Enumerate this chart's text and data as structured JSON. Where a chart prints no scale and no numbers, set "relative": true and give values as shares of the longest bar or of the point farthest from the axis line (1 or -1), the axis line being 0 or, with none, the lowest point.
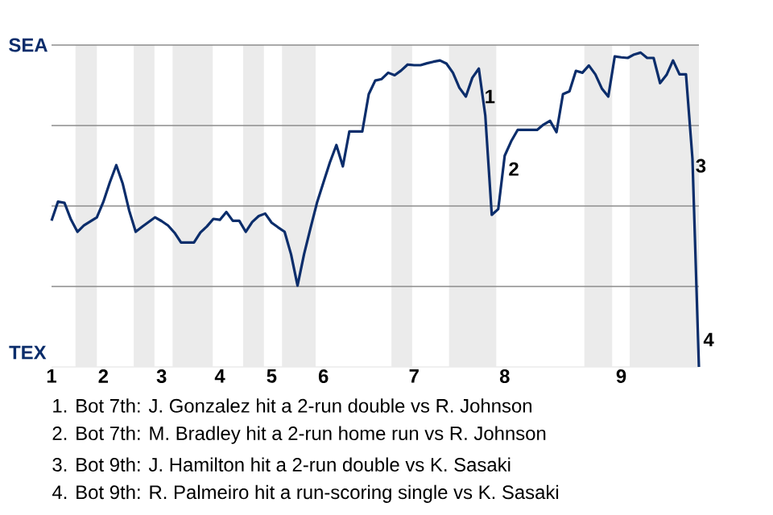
{
  "chart_data": {
    "type": "line",
    "relative": true,
    "color": "#0b2d6b",
    "categories": [
      "1",
      null,
      null,
      null,
      null,
      null,
      null,
      null,
      "2",
      null,
      null,
      null,
      null,
      null,
      null,
      null,
      null,
      "3",
      null,
      null,
      null,
      null,
      null,
      null,
      null,
      null,
      "4",
      null,
      null,
      null,
      null,
      null,
      null,
      null,
      "5",
      null,
      null,
      null,
      null,
      null,
      null,
      null,
      "6",
      null,
      null,
      null,
      null,
      null,
      null,
      null,
      null,
      null,
      null,
      null,
      null,
      null,
      "7",
      null,
      null,
      null,
      null,
      null,
      null,
      null,
      null,
      null,
      null,
      null,
      null,
      null,
      "8",
      null,
      null,
      null,
      null,
      null,
      null,
      null,
      null,
      null,
      null,
      null,
      null,
      null,
      null,
      null,
      null,
      null,
      "9",
      null,
      null,
      null,
      null,
      null,
      null,
      null,
      null,
      null,
      null,
      null,
      null
    ],
    "values": [
      0.465,
      0.526,
      0.522,
      0.469,
      0.43,
      0.45,
      0.463,
      0.476,
      0.525,
      0.587,
      0.642,
      0.583,
      0.497,
      0.43,
      0.446,
      0.461,
      0.476,
      0.464,
      0.45,
      0.427,
      0.396,
      0.396,
      0.396,
      0.428,
      0.447,
      0.471,
      0.468,
      0.493,
      0.465,
      0.465,
      0.43,
      0.461,
      0.48,
      0.488,
      0.459,
      0.444,
      0.43,
      0.358,
      0.259,
      0.358,
      0.441,
      0.522,
      0.587,
      0.651,
      0.706,
      0.638,
      0.749,
      0.749,
      0.749,
      0.868,
      0.911,
      0.916,
      0.936,
      0.928,
      0.943,
      0.962,
      0.96,
      0.96,
      0.966,
      0.971,
      0.975,
      0.965,
      0.936,
      0.888,
      0.86,
      0.92,
      0.949,
      0.8,
      0.484,
      0.502,
      0.672,
      0.718,
      0.754,
      0.754,
      0.754,
      0.754,
      0.771,
      0.783,
      0.747,
      0.868,
      0.877,
      0.942,
      0.936,
      0.959,
      0.931,
      0.886,
      0.86,
      0.988,
      0.985,
      0.983,
      0.994,
      1,
      0.983,
      0.983,
      0.903,
      0.929,
      0.975,
      0.931,
      0.931,
      0.663,
      0
    ],
    "ref_lines": [
      {
        "axis": "y",
        "value": 0.256,
        "color": "#8c8c8c"
      },
      {
        "axis": "y",
        "value": 0.512,
        "color": "#8c8c8c"
      },
      {
        "axis": "y",
        "value": 0.768,
        "color": "#8c8c8c"
      },
      {
        "axis": "y",
        "value": 1.024,
        "label": "SEA",
        "color": "#8c8c8c"
      }
    ],
    "annotations": [
      "1",
      "2",
      "3",
      "4",
      "TEX",
      "1. Bot 7th: J. Gonzalez hit a 2-run double vs R. Johnson",
      "2. Bot 7th: M. Bradley hit a 2-run home run vs R. Johnson",
      "3. Bot 9th: J. Hamilton hit a 2-run double vs K. Sasaki",
      "4. Bot 9th: R. Palmeiro hit a run-scoring single vs K. Sasaki"
    ]
  }
}
